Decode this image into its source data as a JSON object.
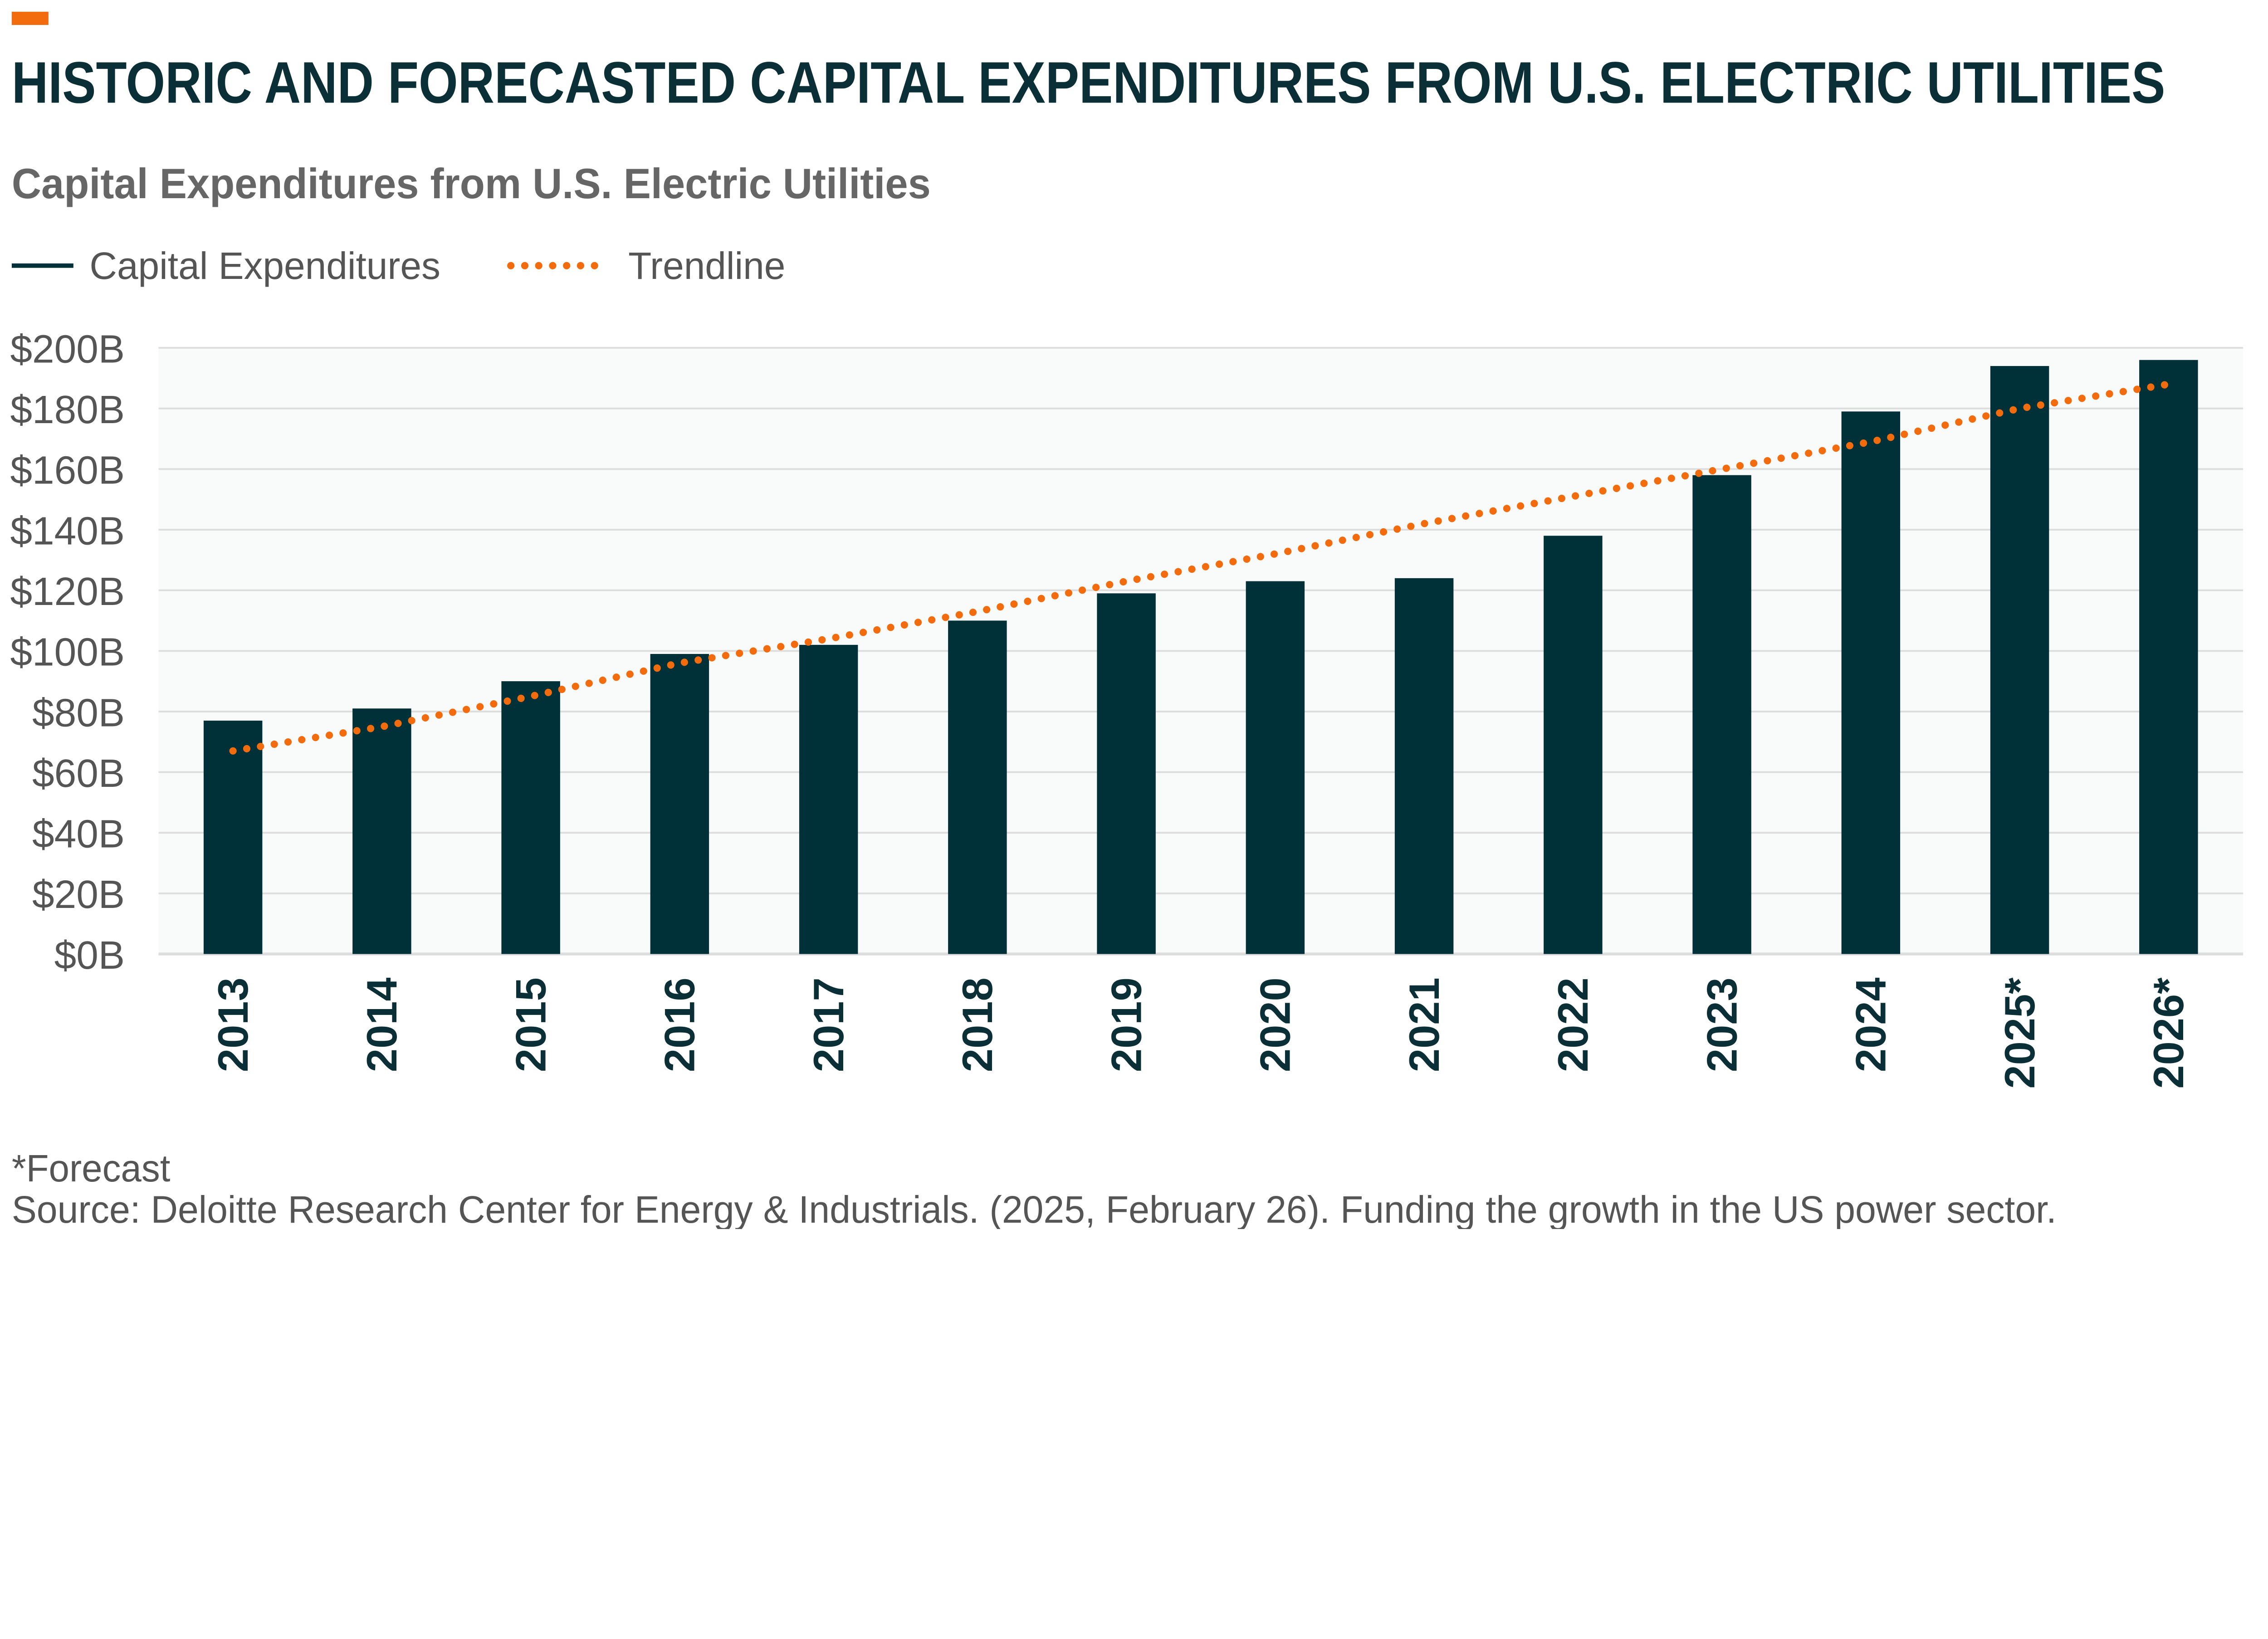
{
  "header": {
    "title": "HISTORIC AND FORECASTED CAPITAL EXPENDITURES FROM U.S. ELECTRIC UTILITIES",
    "accent_color": "#f26c0d"
  },
  "chart_data": {
    "type": "bar",
    "title": "Capital Expenditures from U.S. Electric Utilities",
    "xlabel": "",
    "ylabel": "",
    "categories": [
      "2013",
      "2014",
      "2015",
      "2016",
      "2017",
      "2018",
      "2019",
      "2020",
      "2021",
      "2022",
      "2023",
      "2024",
      "2025*",
      "2026*"
    ],
    "series": [
      {
        "name": "Capital Expenditures",
        "type": "bar",
        "color": "#003038",
        "values": [
          77,
          81,
          90,
          99,
          102,
          110,
          119,
          123,
          124,
          138,
          158,
          179,
          194,
          196
        ]
      },
      {
        "name": "Trendline",
        "type": "line",
        "style": "dotted",
        "color": "#f26c0d",
        "values": [
          67,
          75,
          85,
          96,
          104,
          113,
          123,
          132,
          142,
          151,
          160,
          169,
          180,
          188
        ]
      }
    ],
    "ylim": [
      0,
      200
    ],
    "yticks": [
      "$0B",
      "$20B",
      "$40B",
      "$60B",
      "$80B",
      "$100B",
      "$120B",
      "$140B",
      "$160B",
      "$180B",
      "$200B"
    ],
    "ytick_values": [
      0,
      20,
      40,
      60,
      80,
      100,
      120,
      140,
      160,
      180,
      200
    ],
    "grid": true,
    "legend_position": "top-left"
  },
  "footer": {
    "note": "*Forecast",
    "source": "Source: Deloitte Research Center for Energy & Industrials. (2025, February 26). Funding the growth in the US power sector."
  }
}
